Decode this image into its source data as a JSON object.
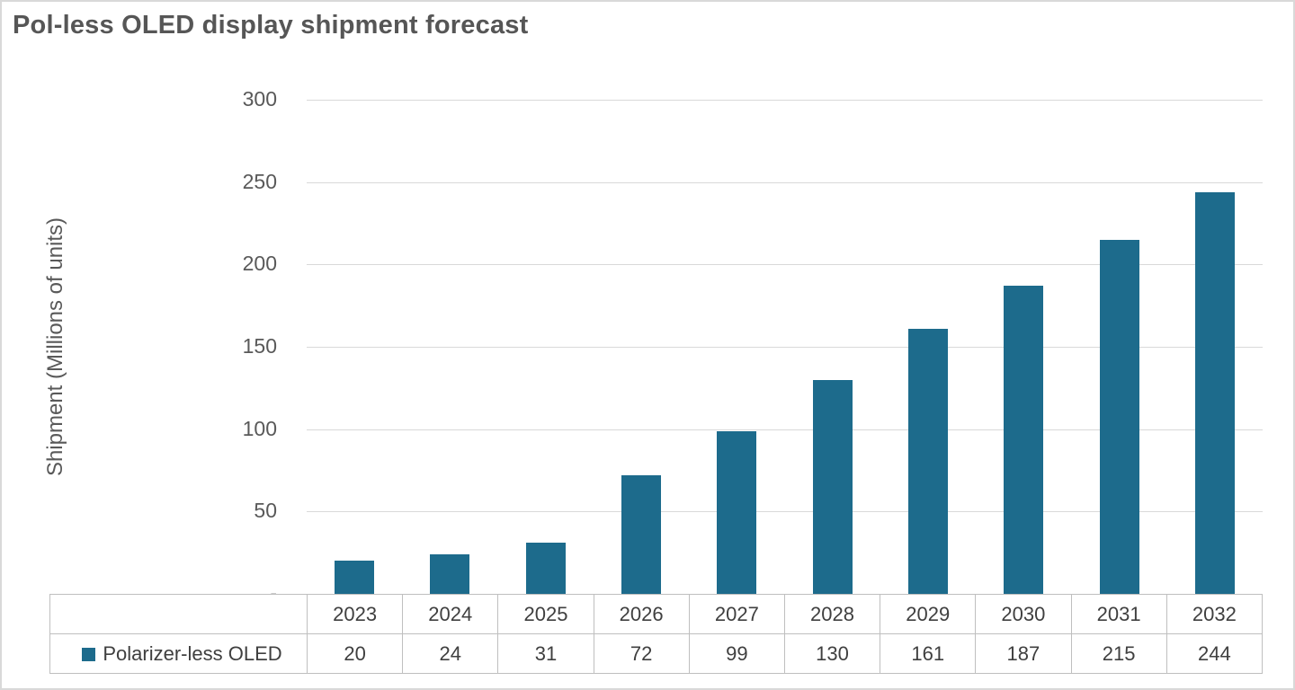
{
  "title": "Pol-less OLED display shipment forecast",
  "chart_data": {
    "type": "bar",
    "title": "Pol-less OLED display shipment forecast",
    "series_name": "Polarizer-less OLED",
    "categories": [
      "2023",
      "2024",
      "2025",
      "2026",
      "2027",
      "2028",
      "2029",
      "2030",
      "2031",
      "2032"
    ],
    "values": [
      20,
      24,
      31,
      72,
      99,
      130,
      161,
      187,
      215,
      244
    ],
    "xlabel": "",
    "ylabel": "Shipment (Millions of units)",
    "ylim": [
      0,
      300
    ],
    "yticks": [
      300,
      250,
      200,
      150,
      100,
      50,
      0
    ],
    "ytick_labels": [
      "300",
      "250",
      "200",
      "150",
      "100",
      "50",
      "-"
    ],
    "bar_color": "#1d6b8c",
    "gridline_color": "#d9d9d9",
    "grid": true,
    "legend_position": "bottom-table"
  }
}
